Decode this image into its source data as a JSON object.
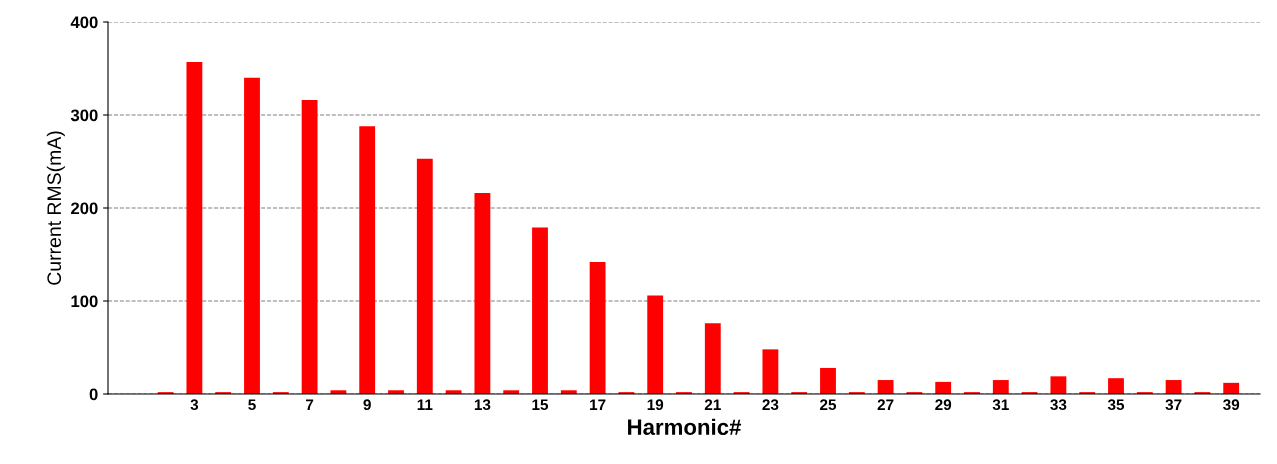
{
  "chart_data": {
    "type": "bar",
    "xlabel": "Harmonic#",
    "ylabel": "Current RMS(mA)",
    "categories": [
      null,
      "3",
      null,
      "5",
      null,
      "7",
      null,
      "9",
      null,
      "11",
      null,
      "13",
      null,
      "15",
      null,
      "17",
      null,
      "19",
      null,
      "21",
      null,
      "23",
      null,
      "25",
      null,
      "27",
      null,
      "29",
      null,
      "31",
      null,
      "33",
      null,
      "35",
      null,
      "37",
      null,
      "39"
    ],
    "values": [
      2,
      357,
      2,
      340,
      2,
      316,
      4,
      288,
      4,
      253,
      4,
      216,
      4,
      179,
      4,
      142,
      2,
      106,
      2,
      76,
      2,
      48,
      2,
      28,
      2,
      15,
      2,
      13,
      2,
      15,
      2,
      19,
      2,
      17,
      2,
      15,
      2,
      12
    ],
    "color": "#ff0000",
    "ylim": [
      0,
      400
    ],
    "yticks": [
      0,
      100,
      200,
      300,
      400
    ],
    "grid": "y",
    "legend": false
  }
}
